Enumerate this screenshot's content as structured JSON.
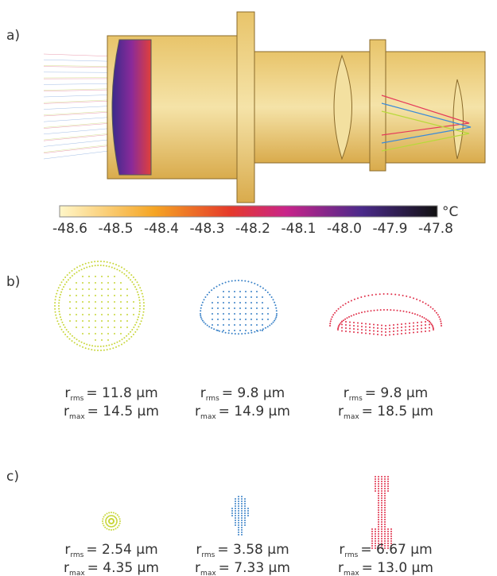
{
  "panels": {
    "a": "a)",
    "b": "b)",
    "c": "c)"
  },
  "colorbar": {
    "unit": "°C",
    "ticks": [
      "-48.6",
      "-48.5",
      "-48.4",
      "-48.3",
      "-48.2",
      "-48.1",
      "-48.0",
      "-47.9",
      "-47.8"
    ]
  },
  "symbol": "r",
  "spots_b": [
    {
      "rms": {
        "sub": "rms",
        "text": "= 11.8 µm"
      },
      "max": {
        "sub": "max",
        "text": "= 14.5 µm"
      }
    },
    {
      "rms": {
        "sub": "rms",
        "text": "= 9.8 µm"
      },
      "max": {
        "sub": "max",
        "text": "= 14.9 µm"
      }
    },
    {
      "rms": {
        "sub": "rms",
        "text": "= 9.8 µm"
      },
      "max": {
        "sub": "max",
        "text": "= 18.5 µm"
      }
    }
  ],
  "spots_c": [
    {
      "rms": {
        "sub": "rms",
        "text": "= 2.54 µm"
      },
      "max": {
        "sub": "max",
        "text": "= 4.35 µm"
      }
    },
    {
      "rms": {
        "sub": "rms",
        "text": "= 3.58 µm"
      },
      "max": {
        "sub": "max",
        "text": "= 7.33 µm"
      }
    },
    {
      "rms": {
        "sub": "rms",
        "text": "= 6.67 µm"
      },
      "max": {
        "sub": "max",
        "text": "= 13.0 µm"
      }
    }
  ]
}
